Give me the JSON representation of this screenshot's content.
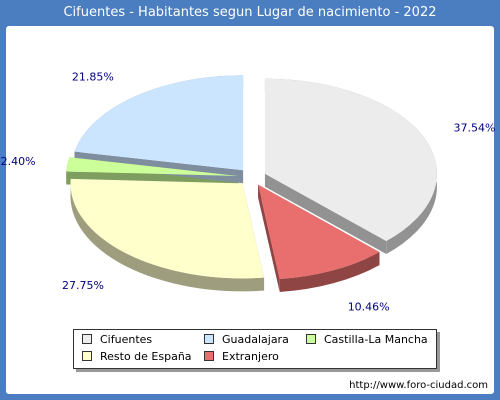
{
  "title": "Cifuentes - Habitantes segun Lugar de nacimiento - 2022",
  "footer": "http://www.foro-ciudad.com",
  "chart_data": {
    "type": "pie",
    "title": "Cifuentes - Habitantes segun Lugar de nacimiento - 2022",
    "legend_position": "bottom",
    "slices": [
      {
        "label": "Cifuentes",
        "value": 37.54,
        "text": "37.54%",
        "color": "#ececec"
      },
      {
        "label": "Extranjero",
        "value": 10.46,
        "text": "10.46%",
        "color": "#e96f6f"
      },
      {
        "label": "Resto de España",
        "value": 27.75,
        "text": "27.75%",
        "color": "#ffffcc"
      },
      {
        "label": "Castilla-La Mancha",
        "value": 2.4,
        "text": "2.40%",
        "color": "#ccff99"
      },
      {
        "label": "Guadalajara",
        "value": 21.85,
        "text": "21.85%",
        "color": "#cce5ff"
      }
    ]
  },
  "legend": [
    {
      "label": "Cifuentes",
      "color": "#ececec"
    },
    {
      "label": "Guadalajara",
      "color": "#cce5ff"
    },
    {
      "label": "Castilla-La Mancha",
      "color": "#ccff99"
    },
    {
      "label": "Resto de España",
      "color": "#ffffcc"
    },
    {
      "label": "Extranjero",
      "color": "#e96f6f"
    }
  ]
}
